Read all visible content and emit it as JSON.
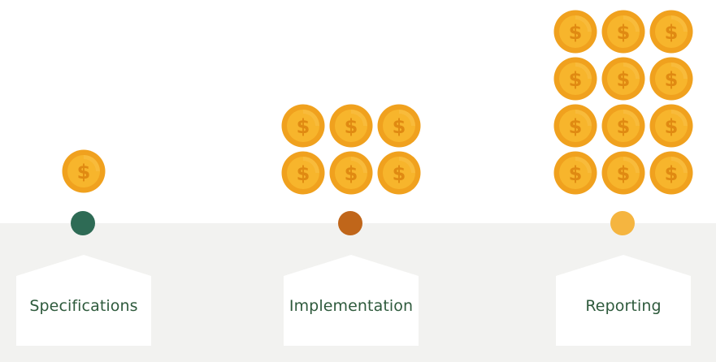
{
  "palette": {
    "band": "#f2f2f0",
    "coin_outer": "#f0a11e",
    "coin_inner": "#f7b52c",
    "coin_symbol": "#e08a12",
    "label_text": "#2e5a3c"
  },
  "stages": [
    {
      "label": "Specifications",
      "coins": 1,
      "dot_color": "#2e6b55"
    },
    {
      "label": "Implementation",
      "coins": 6,
      "dot_color": "#c0661a"
    },
    {
      "label": "Reporting",
      "coins": 12,
      "dot_color": "#f5b540"
    }
  ],
  "coin_symbol": "$"
}
